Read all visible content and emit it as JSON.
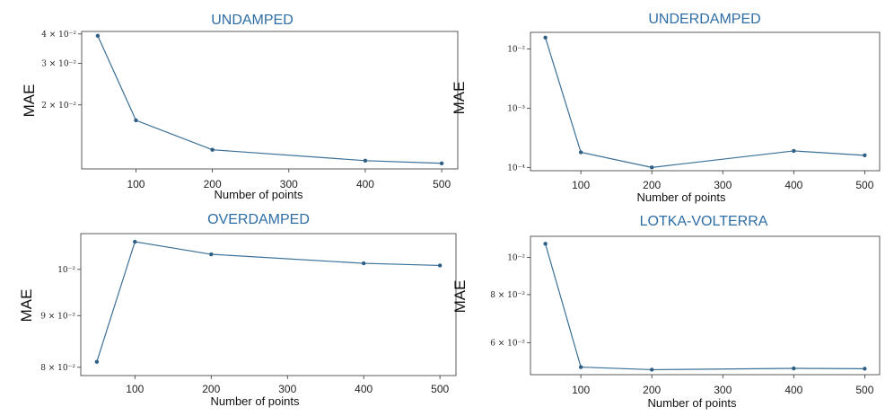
{
  "chart_data": [
    {
      "type": "line",
      "title": "UNDAMPED",
      "xlabel": "Number of points",
      "ylabel": "MAE",
      "x": [
        50,
        100,
        200,
        400,
        500
      ],
      "values": [
        0.0393,
        0.0172,
        0.0129,
        0.0116,
        0.0113
      ],
      "xticks": [
        "100",
        "200",
        "300",
        "400",
        "500"
      ],
      "yticks": [
        "4 × 10⁻²",
        "3 × 10⁻²",
        "2 × 10⁻²"
      ],
      "yscale": "log"
    },
    {
      "type": "line",
      "title": "UNDERDAMPED",
      "xlabel": "Number of points",
      "ylabel": "MAE",
      "x": [
        50,
        100,
        200,
        400,
        500
      ],
      "values": [
        0.0155,
        0.00018,
        0.0001,
        0.00019,
        0.00016
      ],
      "xticks": [
        "100",
        "200",
        "300",
        "400",
        "500"
      ],
      "yticks": [
        "10⁻²",
        "10⁻³",
        "10⁻⁴"
      ],
      "yscale": "log"
    },
    {
      "type": "line",
      "title": "OVERDAMPED",
      "xlabel": "Number of points",
      "ylabel": "MAE",
      "x": [
        50,
        100,
        200,
        400,
        500
      ],
      "values": [
        0.081,
        0.1065,
        0.1035,
        0.1014,
        0.1009
      ],
      "xticks": [
        "100",
        "200",
        "300",
        "400",
        "500"
      ],
      "yticks": [
        "10⁻²",
        "9 × 10⁻²",
        "8 × 10⁻²"
      ],
      "yscale": "log"
    },
    {
      "type": "line",
      "title": "LOTKA-VOLTERRA",
      "xlabel": "Number of points",
      "ylabel": "MAE",
      "x": [
        50,
        100,
        200,
        400,
        500
      ],
      "values": [
        0.1085,
        0.0518,
        0.051,
        0.0514,
        0.0513
      ],
      "xticks": [
        "100",
        "200",
        "300",
        "400",
        "500"
      ],
      "yticks": [
        "10⁻²",
        "8 × 10⁻²",
        "6 × 10⁻²"
      ],
      "yscale": "log"
    }
  ]
}
